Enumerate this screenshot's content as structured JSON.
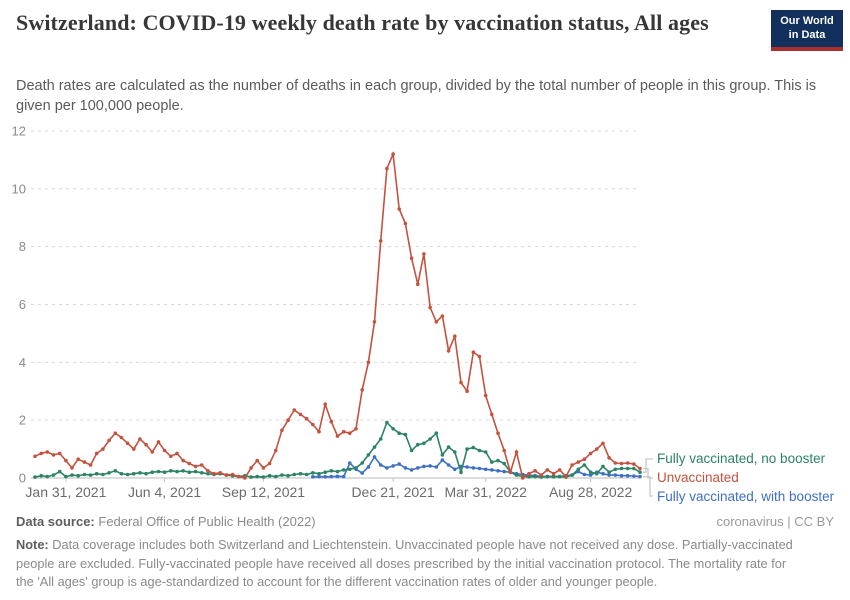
{
  "header": {
    "title": "Switzerland: COVID-19 weekly death rate by vaccination status, All ages",
    "subtitle": "Death rates are calculated as the number of deaths in each group, divided by the total number of people in this group. This is given per 100,000 people."
  },
  "logo": {
    "line1": "Our World",
    "line2": "in Data",
    "bg_color": "#12305B",
    "stripe_color": "#AC2F2F"
  },
  "footer": {
    "source_label": "Data source:",
    "source_value": "Federal Office of Public Health (2022)",
    "license": "coronavirus | CC BY",
    "note_label": "Note:",
    "note_text": "Data coverage includes both Switzerland and Liechtenstein. Unvaccinated people have not received any dose. Partially-vaccinated people are excluded. Fully-vaccinated people have received all doses prescribed by the initial vaccination protocol. The mortality rate for the 'All ages' group is age-standardized to account for the different vaccination rates of older and younger people."
  },
  "chart_data": {
    "type": "line",
    "title": "Switzerland: COVID-19 weekly death rate by vaccination status, All ages",
    "xlabel": "",
    "ylabel": "Weekly death rate per 100,000 people",
    "ylim": [
      0,
      12
    ],
    "y_ticks": [
      0,
      2,
      4,
      6,
      8,
      10,
      12
    ],
    "grid": "dashed horizontal",
    "legend_position": "right",
    "x_ticks": [
      {
        "label": "Jan 31, 2021",
        "idx": 5
      },
      {
        "label": "Jun 4, 2021",
        "idx": 21
      },
      {
        "label": "Sep 12, 2021",
        "idx": 37
      },
      {
        "label": "Dec 21, 2021",
        "idx": 58
      },
      {
        "label": "Mar 31, 2022",
        "idx": 73
      },
      {
        "label": "Aug 28, 2022",
        "idx": 90
      }
    ],
    "x_unit": "week (Jan 2021 - Oct 2022)",
    "series": [
      {
        "name": "Unvaccinated",
        "color": "#C5523F",
        "values": [
          0.75,
          0.85,
          0.9,
          0.8,
          0.85,
          0.6,
          0.35,
          0.65,
          0.55,
          0.45,
          0.85,
          1.0,
          1.3,
          1.55,
          1.4,
          1.2,
          1.0,
          1.35,
          1.15,
          0.9,
          1.25,
          0.95,
          0.75,
          0.85,
          0.6,
          0.5,
          0.4,
          0.45,
          0.25,
          0.15,
          0.18,
          0.1,
          0.12,
          0.05,
          0.0,
          0.35,
          0.6,
          0.35,
          0.5,
          0.95,
          1.65,
          2.0,
          2.35,
          2.2,
          2.05,
          1.85,
          1.6,
          2.55,
          1.95,
          1.45,
          1.6,
          1.55,
          1.7,
          3.05,
          4.0,
          5.4,
          8.2,
          10.7,
          11.2,
          9.3,
          8.8,
          7.6,
          6.7,
          7.75,
          5.9,
          5.4,
          5.6,
          4.4,
          4.9,
          3.3,
          3.0,
          4.35,
          4.2,
          2.85,
          2.2,
          1.55,
          0.95,
          0.2,
          0.9,
          0.0,
          0.15,
          0.25,
          0.1,
          0.28,
          0.15,
          0.28,
          0.05,
          0.45,
          0.55,
          0.65,
          0.85,
          1.0,
          1.2,
          0.7,
          0.52,
          0.5,
          0.52,
          0.48,
          0.33
        ]
      },
      {
        "name": "Fully vaccinated, no booster",
        "color": "#2C8465",
        "values": [
          0.03,
          0.08,
          0.05,
          0.1,
          0.22,
          0.05,
          0.1,
          0.08,
          0.12,
          0.1,
          0.15,
          0.12,
          0.18,
          0.25,
          0.15,
          0.12,
          0.15,
          0.18,
          0.15,
          0.2,
          0.22,
          0.2,
          0.25,
          0.22,
          0.25,
          0.2,
          0.22,
          0.18,
          0.15,
          0.12,
          0.15,
          0.1,
          0.08,
          0.05,
          0.08,
          0.03,
          0.05,
          0.03,
          0.08,
          0.05,
          0.1,
          0.08,
          0.12,
          0.15,
          0.12,
          0.18,
          0.15,
          0.2,
          0.25,
          0.22,
          0.28,
          0.3,
          0.35,
          0.52,
          0.8,
          1.07,
          1.35,
          1.92,
          1.7,
          1.55,
          1.5,
          0.95,
          1.15,
          1.2,
          1.35,
          1.55,
          0.8,
          1.07,
          0.9,
          0.2,
          1.0,
          1.05,
          0.95,
          0.9,
          0.55,
          0.6,
          0.5,
          0.2,
          0.1,
          0.05,
          0.04,
          0.05,
          0.03,
          0.05,
          0.04,
          0.05,
          0.03,
          0.1,
          0.3,
          0.45,
          0.2,
          0.15,
          0.4,
          0.2,
          0.3,
          0.33,
          0.33,
          0.33,
          0.2
        ]
      },
      {
        "name": "Fully vaccinated, with booster",
        "color": "#3E70C4",
        "values": [
          null,
          null,
          null,
          null,
          null,
          null,
          null,
          null,
          null,
          null,
          null,
          null,
          null,
          null,
          null,
          null,
          null,
          null,
          null,
          null,
          null,
          null,
          null,
          null,
          null,
          null,
          null,
          null,
          null,
          null,
          null,
          null,
          null,
          null,
          null,
          null,
          null,
          null,
          null,
          null,
          null,
          null,
          null,
          null,
          null,
          0.04,
          0.05,
          0.04,
          0.05,
          0.06,
          0.05,
          0.52,
          0.3,
          0.17,
          0.38,
          0.73,
          0.45,
          0.35,
          0.42,
          0.48,
          0.35,
          0.28,
          0.35,
          0.4,
          0.42,
          0.38,
          0.62,
          0.45,
          0.3,
          0.4,
          0.38,
          0.35,
          0.33,
          0.3,
          0.28,
          0.25,
          0.22,
          0.2,
          0.15,
          0.12,
          0.1,
          0.08,
          0.06,
          0.05,
          0.06,
          0.05,
          0.08,
          0.1,
          0.22,
          0.12,
          0.1,
          0.2,
          0.15,
          0.1,
          0.1,
          0.08,
          0.08,
          0.07,
          0.05
        ]
      }
    ],
    "legend": [
      {
        "label": "Fully vaccinated, no booster",
        "series": 1
      },
      {
        "label": "Unvaccinated",
        "series": 0
      },
      {
        "label": "Fully vaccinated, with booster",
        "series": 2
      }
    ]
  }
}
